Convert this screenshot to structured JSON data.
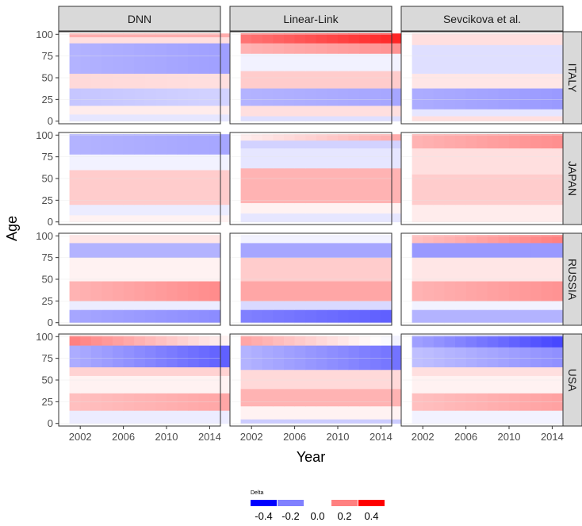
{
  "chart_data": {
    "type": "heatmap",
    "title": "",
    "xlabel": "Year",
    "ylabel": "Age",
    "columns": [
      "DNN",
      "Linear-Link",
      "Sevcikova et al."
    ],
    "rows": [
      "ITALY",
      "JAPAN",
      "RUSSIA",
      "USA"
    ],
    "xlim": [
      2000,
      2015
    ],
    "ylim": [
      -3,
      103
    ],
    "x_ticks": [
      2002,
      2006,
      2010,
      2014
    ],
    "y_ticks": [
      0,
      25,
      50,
      75,
      100
    ],
    "data_end_year": {
      "ITALY": 2015,
      "JAPAN": 2015,
      "RUSSIA": 2014,
      "USA": 2015
    },
    "grid": true,
    "legend": {
      "title": "Delta",
      "position": "bottom",
      "labels": [
        "-0.4",
        "-0.2",
        "0.0",
        "0.2",
        "0.4"
      ],
      "values": [
        -0.4,
        -0.2,
        0.0,
        0.2,
        0.4
      ]
    },
    "color_scale": {
      "low": "#0000ff",
      "mid": "#ffffff",
      "high": "#ff0000",
      "limits": [
        -0.4,
        0.4
      ]
    },
    "panels": [
      {
        "column": "DNN",
        "row": "ITALY",
        "bands": [
          {
            "age": [
              0,
              8
            ],
            "delta": -0.04
          },
          {
            "age": [
              8,
              18
            ],
            "delta": 0.03
          },
          {
            "age": [
              18,
              38
            ],
            "delta": -0.09,
            "trend": 0.02
          },
          {
            "age": [
              38,
              55
            ],
            "delta": 0.06,
            "trend": -0.01
          },
          {
            "age": [
              55,
              90
            ],
            "delta": -0.12,
            "trend": -0.03
          },
          {
            "age": [
              90,
              97
            ],
            "delta": 0.05
          },
          {
            "age": [
              97,
              101
            ],
            "delta": 0.13
          }
        ]
      },
      {
        "column": "Linear-Link",
        "row": "ITALY",
        "bands": [
          {
            "age": [
              0,
              6
            ],
            "delta": -0.05
          },
          {
            "age": [
              6,
              18
            ],
            "delta": 0.05
          },
          {
            "age": [
              18,
              38
            ],
            "delta": -0.12,
            "trend": -0.02
          },
          {
            "age": [
              38,
              58
            ],
            "delta": 0.08
          },
          {
            "age": [
              58,
              78
            ],
            "delta": -0.02
          },
          {
            "age": [
              78,
              90
            ],
            "delta": 0.12,
            "trend": 0.05
          },
          {
            "age": [
              90,
              101
            ],
            "delta": 0.22,
            "trend": 0.12
          }
        ]
      },
      {
        "column": "Sevcikova et al.",
        "row": "ITALY",
        "bands": [
          {
            "age": [
              0,
              6
            ],
            "delta": 0.05
          },
          {
            "age": [
              6,
              14
            ],
            "delta": -0.04
          },
          {
            "age": [
              14,
              38
            ],
            "delta": -0.13,
            "trend": -0.03
          },
          {
            "age": [
              38,
              55
            ],
            "delta": 0.04
          },
          {
            "age": [
              55,
              88
            ],
            "delta": -0.05
          },
          {
            "age": [
              88,
              101
            ],
            "delta": 0.05
          }
        ]
      },
      {
        "column": "DNN",
        "row": "JAPAN",
        "bands": [
          {
            "age": [
              0,
              8
            ],
            "delta": 0.02
          },
          {
            "age": [
              8,
              20
            ],
            "delta": -0.03
          },
          {
            "age": [
              20,
              60
            ],
            "delta": 0.08
          },
          {
            "age": [
              60,
              78
            ],
            "delta": -0.02
          },
          {
            "age": [
              78,
              101
            ],
            "delta": -0.12,
            "trend": -0.02
          }
        ]
      },
      {
        "column": "Linear-Link",
        "row": "JAPAN",
        "bands": [
          {
            "age": [
              0,
              10
            ],
            "delta": -0.04
          },
          {
            "age": [
              10,
              22
            ],
            "delta": 0.02
          },
          {
            "age": [
              22,
              62
            ],
            "delta": 0.12
          },
          {
            "age": [
              62,
              85
            ],
            "delta": -0.04
          },
          {
            "age": [
              85,
              94
            ],
            "delta": -0.07
          },
          {
            "age": [
              94,
              101
            ],
            "delta": 0.03,
            "trend": 0.1
          }
        ]
      },
      {
        "column": "Sevcikova et al.",
        "row": "JAPAN",
        "bands": [
          {
            "age": [
              0,
              20
            ],
            "delta": 0.03
          },
          {
            "age": [
              20,
              55
            ],
            "delta": 0.08
          },
          {
            "age": [
              55,
              85
            ],
            "delta": 0.05
          },
          {
            "age": [
              85,
              101
            ],
            "delta": 0.12,
            "trend": 0.06
          }
        ]
      },
      {
        "column": "DNN",
        "row": "RUSSIA",
        "bands": [
          {
            "age": [
              0,
              15
            ],
            "delta": -0.14,
            "trend": -0.04
          },
          {
            "age": [
              15,
              25
            ],
            "delta": -0.03
          },
          {
            "age": [
              25,
              48
            ],
            "delta": 0.12,
            "trend": 0.06
          },
          {
            "age": [
              48,
              75
            ],
            "delta": 0.02
          },
          {
            "age": [
              75,
              92
            ],
            "delta": -0.12
          },
          {
            "age": [
              92,
              101
            ],
            "delta": 0.04
          }
        ]
      },
      {
        "column": "Linear-Link",
        "row": "RUSSIA",
        "bands": [
          {
            "age": [
              0,
              15
            ],
            "delta": -0.2,
            "trend": -0.05
          },
          {
            "age": [
              15,
              25
            ],
            "delta": -0.06
          },
          {
            "age": [
              25,
              48
            ],
            "delta": 0.14
          },
          {
            "age": [
              48,
              75
            ],
            "delta": 0.08
          },
          {
            "age": [
              75,
              92
            ],
            "delta": -0.14
          },
          {
            "age": [
              92,
              101
            ],
            "delta": -0.02
          }
        ]
      },
      {
        "column": "Sevcikova et al.",
        "row": "RUSSIA",
        "bands": [
          {
            "age": [
              0,
              15
            ],
            "delta": -0.12
          },
          {
            "age": [
              15,
              25
            ],
            "delta": -0.02
          },
          {
            "age": [
              25,
              48
            ],
            "delta": 0.12,
            "trend": 0.05
          },
          {
            "age": [
              48,
              75
            ],
            "delta": 0.04
          },
          {
            "age": [
              75,
              92
            ],
            "delta": -0.16
          },
          {
            "age": [
              92,
              101
            ],
            "delta": 0.1,
            "trend": 0.1
          }
        ]
      },
      {
        "column": "DNN",
        "row": "USA",
        "bands": [
          {
            "age": [
              0,
              15
            ],
            "delta": -0.03
          },
          {
            "age": [
              15,
              35
            ],
            "delta": 0.1,
            "trend": 0.04
          },
          {
            "age": [
              35,
              55
            ],
            "delta": 0.02
          },
          {
            "age": [
              55,
              65
            ],
            "delta": 0.07
          },
          {
            "age": [
              65,
              90
            ],
            "delta": -0.13,
            "trend": -0.12
          },
          {
            "age": [
              90,
              101
            ],
            "delta": 0.2,
            "trend": -0.18
          }
        ]
      },
      {
        "column": "Linear-Link",
        "row": "USA",
        "bands": [
          {
            "age": [
              0,
              5
            ],
            "delta": -0.08
          },
          {
            "age": [
              5,
              20
            ],
            "delta": 0.02
          },
          {
            "age": [
              20,
              40
            ],
            "delta": 0.12
          },
          {
            "age": [
              40,
              62
            ],
            "delta": 0.06
          },
          {
            "age": [
              62,
              90
            ],
            "delta": -0.12,
            "trend": -0.1
          },
          {
            "age": [
              90,
              101
            ],
            "delta": 0.14,
            "trend": -0.16
          }
        ]
      },
      {
        "column": "Sevcikova et al.",
        "row": "USA",
        "bands": [
          {
            "age": [
              0,
              15
            ],
            "delta": -0.02
          },
          {
            "age": [
              15,
              35
            ],
            "delta": 0.1,
            "trend": 0.05
          },
          {
            "age": [
              35,
              55
            ],
            "delta": 0.02
          },
          {
            "age": [
              55,
              65
            ],
            "delta": 0.05
          },
          {
            "age": [
              65,
              88
            ],
            "delta": -0.1,
            "trend": -0.08
          },
          {
            "age": [
              88,
              101
            ],
            "delta": -0.15,
            "trend": -0.15
          }
        ]
      }
    ]
  }
}
